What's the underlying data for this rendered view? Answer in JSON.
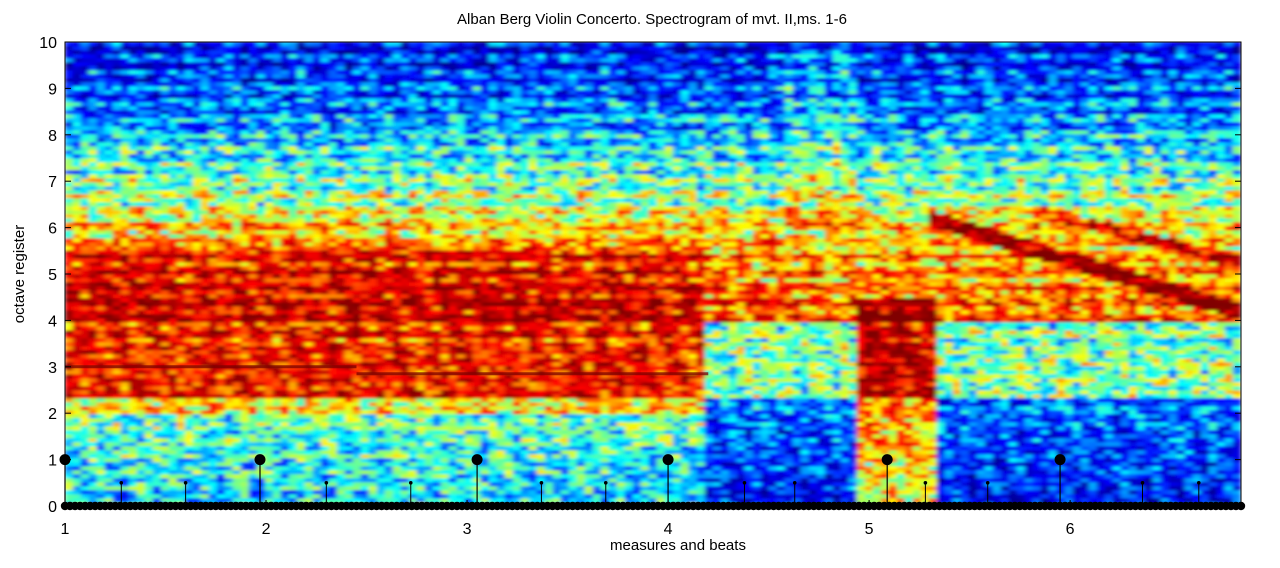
{
  "chart_data": {
    "type": "heatmap",
    "title": "Alban Berg Violin Concerto. Spectrogram of mvt. II,ms. 1-6",
    "xlabel": "measures and beats",
    "ylabel": "octave register",
    "ylim": [
      0,
      10
    ],
    "xlim": [
      1,
      6.85
    ],
    "yticks": [
      "0",
      "1",
      "2",
      "3",
      "4",
      "5",
      "6",
      "7",
      "8",
      "9",
      "10"
    ],
    "xticks": [
      {
        "value": 1,
        "label": "1"
      },
      {
        "value": 2,
        "label": "2"
      },
      {
        "value": 3,
        "label": "3"
      },
      {
        "value": 4,
        "label": "4"
      },
      {
        "value": 5,
        "label": "5"
      },
      {
        "value": 6,
        "label": "6"
      }
    ],
    "colormap": "jet",
    "colormap_stops": [
      "#00008f",
      "#0000ff",
      "#00ffff",
      "#ffff00",
      "#ff0000",
      "#800000"
    ],
    "grid": false,
    "measure_markers": {
      "y": 1,
      "x": [
        1.0,
        1.97,
        3.05,
        4.0,
        5.09,
        5.95
      ]
    },
    "beat_markers": {
      "y": 0.5,
      "x": [
        1.28,
        1.6,
        2.3,
        2.72,
        3.37,
        3.69,
        4.38,
        4.63,
        5.28,
        5.59,
        6.36,
        6.64
      ]
    },
    "baseline_dots": {
      "y": 0,
      "from": 1.0,
      "to": 6.85,
      "step": 0.025
    }
  }
}
